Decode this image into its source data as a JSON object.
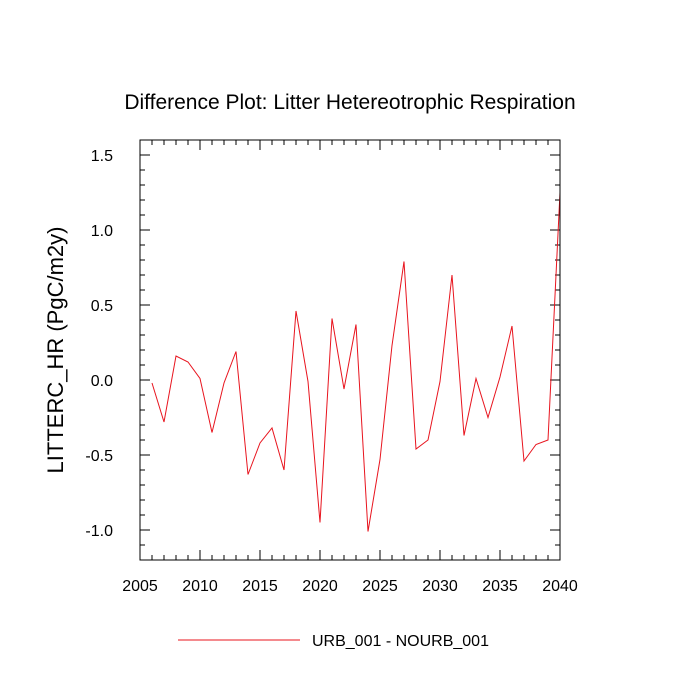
{
  "chart_data": {
    "type": "line",
    "title": "Difference Plot: Litter Hetereotrophic Respiration",
    "xlabel": "",
    "ylabel": "LITTERC_HR  (PgC/m2y)",
    "xlim": [
      2005,
      2040
    ],
    "ylim": [
      -1.2,
      1.6
    ],
    "x_ticks": [
      2005,
      2010,
      2015,
      2020,
      2025,
      2030,
      2035,
      2040
    ],
    "y_ticks": [
      -1.0,
      -0.5,
      0.0,
      0.5,
      1.0,
      1.5
    ],
    "x_tick_labels": [
      "2005",
      "2010",
      "2015",
      "2020",
      "2025",
      "2030",
      "2035",
      "2040"
    ],
    "y_tick_labels": [
      "-1.0",
      "-0.5",
      "0.0",
      "0.5",
      "1.0",
      "1.5"
    ],
    "grid": false,
    "legend_position": "bottom",
    "series": [
      {
        "name": "URB_001 - NOURB_001",
        "color": "#e8141e",
        "x": [
          2006,
          2007,
          2008,
          2009,
          2010,
          2011,
          2012,
          2013,
          2014,
          2015,
          2016,
          2017,
          2018,
          2019,
          2020,
          2021,
          2022,
          2023,
          2024,
          2025,
          2026,
          2027,
          2028,
          2029,
          2030,
          2031,
          2032,
          2033,
          2034,
          2035,
          2036,
          2037,
          2038,
          2039,
          2040
        ],
        "values": [
          -0.02,
          -0.28,
          0.16,
          0.12,
          0.01,
          -0.35,
          -0.02,
          0.19,
          -0.63,
          -0.42,
          -0.32,
          -0.6,
          0.46,
          -0.01,
          -0.95,
          0.41,
          -0.06,
          0.37,
          -1.01,
          -0.53,
          0.23,
          0.79,
          -0.46,
          -0.4,
          -0.01,
          0.7,
          -0.37,
          0.01,
          -0.25,
          0.02,
          0.36,
          -0.54,
          -0.43,
          -0.4,
          1.25
        ]
      }
    ]
  }
}
